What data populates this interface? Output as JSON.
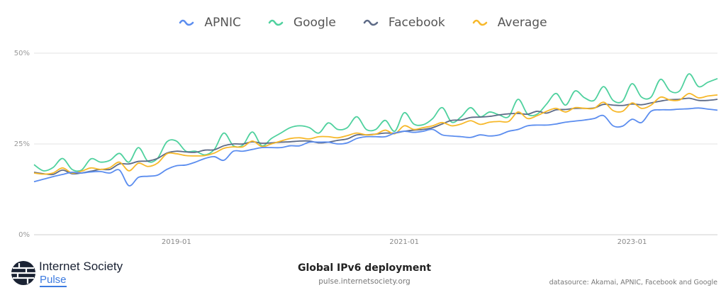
{
  "legend": [
    {
      "name": "APNIC",
      "color": "#5b8def"
    },
    {
      "name": "Google",
      "color": "#4fd19e"
    },
    {
      "name": "Facebook",
      "color": "#5d6a86"
    },
    {
      "name": "Average",
      "color": "#f7b82a"
    }
  ],
  "chart_data": {
    "type": "line",
    "title": "Global IPv6 deployment",
    "x_start": "2017-10",
    "x_interval": "month",
    "x_ticks": [
      "2019-01",
      "2021-01",
      "2023-01"
    ],
    "y_ticks": [
      "0%",
      "25%",
      "50%"
    ],
    "ylim": [
      0,
      50
    ],
    "grid": true,
    "legend_position": "top",
    "series": [
      {
        "name": "APNIC",
        "values": [
          14.6,
          15.3,
          16,
          16.6,
          17.2,
          17,
          17.3,
          17.4,
          17,
          17.8,
          13.5,
          15.8,
          16.1,
          16.4,
          18,
          19,
          19.2,
          20,
          21,
          21.5,
          20.5,
          23,
          23,
          23.5,
          24,
          24,
          24,
          24.5,
          24.5,
          25.5,
          25.5,
          25.5,
          25,
          25.3,
          26.5,
          27,
          27,
          27,
          28,
          28.5,
          28.2,
          28.5,
          29,
          27.5,
          27.2,
          27,
          26.8,
          27.5,
          27.2,
          27.5,
          28.5,
          29,
          30,
          30.2,
          30.2,
          30.5,
          31,
          31.3,
          31.6,
          32,
          32.8,
          30,
          29.9,
          31.8,
          30.9,
          34,
          34.4,
          34.4,
          34.6,
          34.7,
          34.9,
          34.6,
          34.3
        ]
      },
      {
        "name": "Google",
        "values": [
          19.3,
          17.6,
          18.5,
          21,
          18,
          17.8,
          20.9,
          20,
          20.5,
          22.4,
          20,
          24,
          20.2,
          21,
          25.6,
          25.8,
          23,
          23,
          22,
          23.5,
          28,
          24.5,
          24.7,
          28.3,
          24.5,
          26.5,
          28,
          29.5,
          30,
          29.5,
          28,
          30.8,
          29,
          29.5,
          32.5,
          29,
          29,
          31.5,
          28.5,
          33.6,
          30.5,
          30.3,
          32,
          35,
          31,
          32.5,
          35,
          32.5,
          33.8,
          33,
          32.5,
          37.3,
          33.2,
          33.2,
          36,
          38.9,
          35.7,
          39.6,
          37.7,
          37,
          40.8,
          37,
          36.8,
          41.6,
          37.9,
          37.9,
          42.8,
          39.6,
          39.6,
          44.3,
          40.8,
          42,
          43
        ]
      },
      {
        "name": "Facebook",
        "values": [
          17.2,
          16.8,
          16.6,
          17.8,
          16.8,
          17,
          17.5,
          18,
          18,
          19.5,
          19.5,
          20.2,
          20.3,
          21,
          22.5,
          23,
          22.8,
          22.7,
          23.3,
          23.4,
          24.5,
          25,
          25,
          25.6,
          25.2,
          25.3,
          25.5,
          25.6,
          25.8,
          25.8,
          25.3,
          25.5,
          26,
          26.4,
          27.5,
          27.5,
          27.7,
          28,
          28,
          28.5,
          28.8,
          29,
          29.5,
          30.5,
          31.5,
          31.6,
          32.3,
          32.4,
          32.6,
          33,
          33.3,
          33.4,
          33.2,
          34,
          33.5,
          34.4,
          34.5,
          34.8,
          34.8,
          34.9,
          35.9,
          35.7,
          35.6,
          36,
          35.8,
          36.3,
          36.8,
          37.2,
          37.3,
          37.6,
          37,
          37,
          37.3
        ]
      },
      {
        "name": "Average",
        "values": [
          17,
          16.7,
          17,
          18.4,
          17,
          17.5,
          18.4,
          18,
          18.5,
          20,
          17.6,
          19.7,
          18.8,
          19.7,
          22.3,
          22.3,
          21.8,
          21.7,
          21.8,
          22.5,
          23.8,
          24.2,
          24.2,
          25.8,
          24.3,
          25,
          25.8,
          26.5,
          26.7,
          26.4,
          27,
          27,
          26.7,
          27.3,
          28,
          27.5,
          27.7,
          28.8,
          27.8,
          30,
          29,
          29.5,
          30,
          30.9,
          30,
          30.5,
          31.4,
          30.4,
          31,
          31.2,
          31.2,
          33.8,
          32,
          32.8,
          34,
          34.8,
          33.8,
          35,
          34.8,
          34.8,
          36.5,
          34.2,
          34,
          36.3,
          34.8,
          35.7,
          37.9,
          37.1,
          37.1,
          38.9,
          37.7,
          38.2,
          38.5
        ]
      }
    ]
  },
  "footer": {
    "brand": "Internet Society",
    "product": "Pulse",
    "title": "Global IPv6 deployment",
    "url": "pulse.internetsociety.org",
    "datasource": "datasource: Akamai, APNIC, Facebook and Google"
  }
}
